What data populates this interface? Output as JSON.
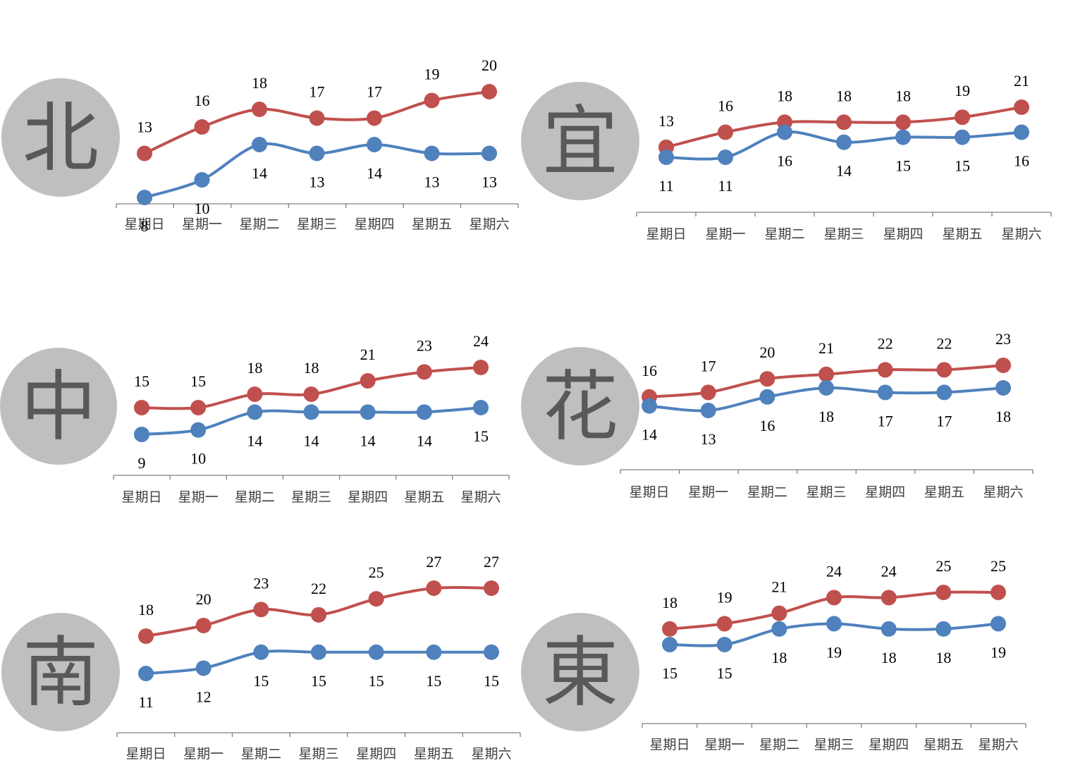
{
  "colors": {
    "high": "#C0504D",
    "low": "#4F81BD",
    "badge": "#BFBFBF",
    "badge_text": "#595959",
    "axis": "#808080"
  },
  "chart_data": [
    {
      "type": "line",
      "city": "北",
      "categories": [
        "星期日",
        "星期一",
        "星期二",
        "星期三",
        "星期四",
        "星期五",
        "星期六"
      ],
      "series": [
        {
          "values": [
            13,
            16,
            18,
            17,
            17,
            19,
            20
          ]
        },
        {
          "values": [
            8,
            10,
            14,
            13,
            14,
            13,
            13
          ]
        }
      ]
    },
    {
      "type": "line",
      "city": "宜",
      "categories": [
        "星期日",
        "星期一",
        "星期二",
        "星期三",
        "星期四",
        "星期五",
        "星期六"
      ],
      "series": [
        {
          "values": [
            13,
            16,
            18,
            18,
            18,
            19,
            21
          ]
        },
        {
          "values": [
            11,
            11,
            16,
            14,
            15,
            15,
            16
          ]
        }
      ]
    },
    {
      "type": "line",
      "city": "中",
      "categories": [
        "星期日",
        "星期一",
        "星期二",
        "星期三",
        "星期四",
        "星期五",
        "星期六"
      ],
      "series": [
        {
          "values": [
            15,
            15,
            18,
            18,
            21,
            23,
            24
          ]
        },
        {
          "values": [
            9,
            10,
            14,
            14,
            14,
            14,
            15
          ]
        }
      ]
    },
    {
      "type": "line",
      "city": "花",
      "categories": [
        "星期日",
        "星期一",
        "星期二",
        "星期三",
        "星期四",
        "星期五",
        "星期六"
      ],
      "series": [
        {
          "values": [
            16,
            17,
            20,
            21,
            22,
            22,
            23
          ]
        },
        {
          "values": [
            14,
            13,
            16,
            18,
            17,
            17,
            18
          ]
        }
      ]
    },
    {
      "type": "line",
      "city": "南",
      "categories": [
        "星期日",
        "星期一",
        "星期二",
        "星期三",
        "星期四",
        "星期五",
        "星期六"
      ],
      "series": [
        {
          "values": [
            18,
            20,
            23,
            22,
            25,
            27,
            27
          ]
        },
        {
          "values": [
            11,
            12,
            15,
            15,
            15,
            15,
            15
          ]
        }
      ]
    },
    {
      "type": "line",
      "city": "東",
      "categories": [
        "星期日",
        "星期一",
        "星期二",
        "星期三",
        "星期四",
        "星期五",
        "星期六"
      ],
      "series": [
        {
          "values": [
            18,
            19,
            21,
            24,
            24,
            25,
            25
          ]
        },
        {
          "values": [
            15,
            15,
            18,
            19,
            18,
            18,
            19
          ]
        }
      ]
    }
  ]
}
